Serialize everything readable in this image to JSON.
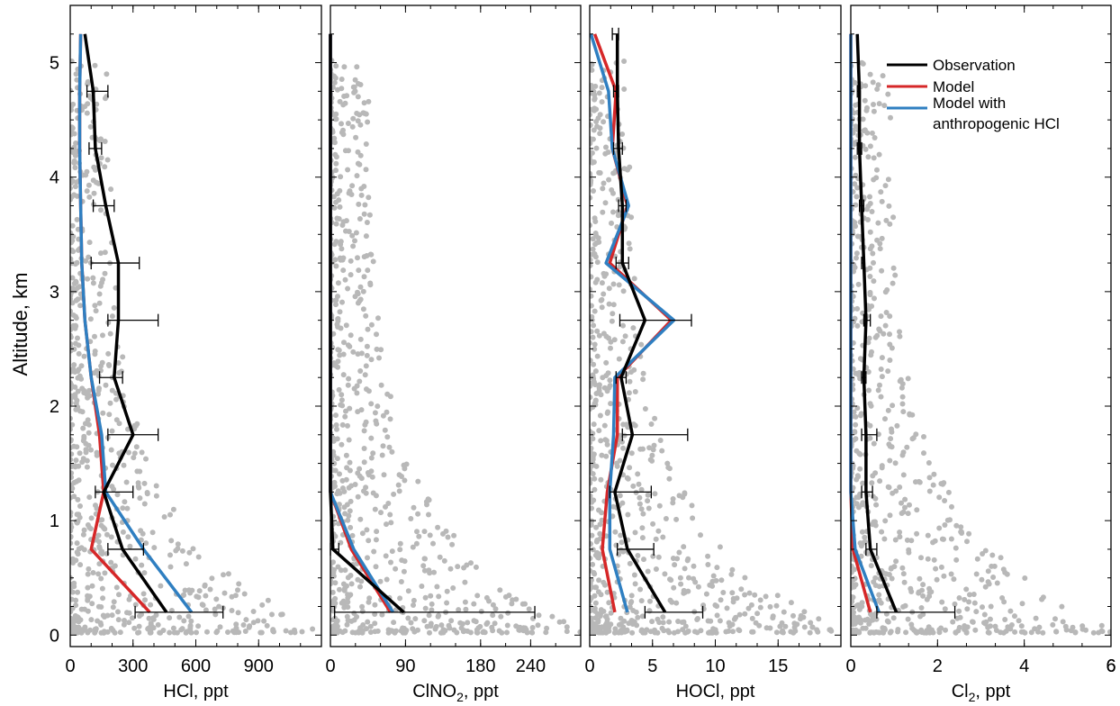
{
  "ylabel": "Altitude, km",
  "colors": {
    "observation": "#000000",
    "model": "#d62728",
    "model_anthro": "#2f7fc1",
    "scatter": "#b8b8b8"
  },
  "legend": {
    "placement": "top-right of Cl2 panel",
    "entries": [
      {
        "key": "observation",
        "label": "Observation"
      },
      {
        "key": "model",
        "label": "Model"
      },
      {
        "key": "model_anthro",
        "label": "Model with"
      },
      {
        "key": "model_anthro_cont",
        "label": "anthropogenic HCl"
      }
    ]
  },
  "chart_data": [
    {
      "type": "line",
      "name": "hcl",
      "xlabel": "HCl, ppt",
      "xlim": [
        0,
        1200
      ],
      "xticks": [
        0,
        300,
        600,
        900
      ],
      "ylim": [
        -0.1,
        5.5
      ],
      "yticks": [
        0,
        1,
        2,
        3,
        4,
        5
      ],
      "y": [
        0.2,
        0.75,
        1.25,
        1.75,
        2.25,
        2.75,
        3.25,
        3.75,
        4.25,
        4.75,
        5.25
      ],
      "observation": [
        460,
        250,
        160,
        300,
        210,
        230,
        230,
        170,
        120,
        110,
        70
      ],
      "error_low": [
        310,
        180,
        120,
        180,
        140,
        180,
        100,
        110,
        90,
        80
      ],
      "error_high": [
        730,
        350,
        300,
        420,
        250,
        420,
        330,
        210,
        150,
        180
      ],
      "model": [
        380,
        100,
        160,
        140,
        100,
        70,
        55,
        50,
        45,
        45,
        50
      ],
      "model_anthro": [
        580,
        350,
        170,
        150,
        100,
        70,
        55,
        50,
        45,
        45,
        50
      ]
    },
    {
      "type": "line",
      "name": "clno2",
      "xlabel": "ClNO2, ppt",
      "xlim": [
        0,
        300
      ],
      "xticks": [
        0,
        90,
        180,
        240
      ],
      "ylim": [
        -0.1,
        5.5
      ],
      "yticks": [
        0,
        1,
        2,
        3,
        4,
        5
      ],
      "y": [
        0.2,
        0.75,
        1.25,
        1.75,
        2.25,
        2.75,
        3.25,
        3.75,
        4.25,
        4.75,
        5.25
      ],
      "observation": [
        88,
        3,
        0,
        0,
        0,
        0,
        0,
        0,
        0,
        0,
        0
      ],
      "error_low": [
        5,
        0
      ],
      "error_high": [
        245,
        10
      ],
      "model": [
        72,
        25,
        0,
        0,
        0,
        0,
        0,
        0,
        0,
        0,
        0
      ],
      "model_anthro": [
        75,
        28,
        0,
        0,
        0,
        0,
        0,
        0,
        0,
        0,
        0
      ]
    },
    {
      "type": "line",
      "name": "hocl",
      "xlabel": "HOCl, ppt",
      "xlim": [
        0,
        20
      ],
      "xticks": [
        0,
        5,
        10,
        15
      ],
      "ylim": [
        -0.1,
        5.5
      ],
      "yticks": [
        0,
        1,
        2,
        3,
        4,
        5
      ],
      "y": [
        0.2,
        0.75,
        1.25,
        1.75,
        2.25,
        2.75,
        3.25,
        3.75,
        4.25,
        4.75,
        5.25
      ],
      "observation": [
        6,
        3,
        2,
        3.4,
        2.5,
        4.4,
        2.6,
        2.6,
        2.3,
        2.2,
        2.2
      ],
      "error_low": [
        4.4,
        2.2,
        1.6,
        2.6,
        2.1,
        2.4,
        2.1,
        2.3,
        1.9,
        1.9,
        1.8
      ],
      "error_high": [
        9,
        5.1,
        4.9,
        7.8,
        2.9,
        8.1,
        3.1,
        2.9,
        2.6,
        2.3,
        2.3
      ],
      "model": [
        2,
        1,
        1.4,
        2.2,
        2.2,
        6.5,
        1.6,
        3,
        1.8,
        2.1,
        0.4
      ],
      "model_anthro": [
        3,
        1.6,
        1.6,
        1.9,
        2,
        6.7,
        1.3,
        3.1,
        1.8,
        1.5,
        0.1
      ]
    },
    {
      "type": "line",
      "name": "cl2",
      "xlabel": "Cl2, ppt",
      "xlim": [
        0,
        6
      ],
      "xticks": [
        0,
        2,
        4,
        6
      ],
      "ylim": [
        -0.1,
        5.5
      ],
      "yticks": [
        0,
        1,
        2,
        3,
        4,
        5
      ],
      "y": [
        0.2,
        0.75,
        1.25,
        1.75,
        2.25,
        2.75,
        3.25,
        3.75,
        4.25,
        4.75,
        5.25
      ],
      "observation": [
        1.05,
        0.45,
        0.35,
        0.35,
        0.3,
        0.35,
        0.3,
        0.25,
        0.2,
        0.2,
        0.15
      ],
      "error_low": [
        0.6,
        0.35,
        0.25,
        0.25,
        0.25,
        0.3,
        0.25,
        0.2,
        0.15,
        0.15
      ],
      "error_high": [
        2.4,
        0.6,
        0.5,
        0.6,
        0.35,
        0.45,
        0.3,
        0.3,
        0.25,
        0.2
      ],
      "model": [
        0.45,
        0.05,
        0,
        0,
        0,
        0,
        0,
        0,
        0,
        0,
        0
      ],
      "model_anthro": [
        0.65,
        0.1,
        0,
        0,
        0,
        0,
        0,
        0,
        0,
        0,
        0
      ]
    }
  ]
}
